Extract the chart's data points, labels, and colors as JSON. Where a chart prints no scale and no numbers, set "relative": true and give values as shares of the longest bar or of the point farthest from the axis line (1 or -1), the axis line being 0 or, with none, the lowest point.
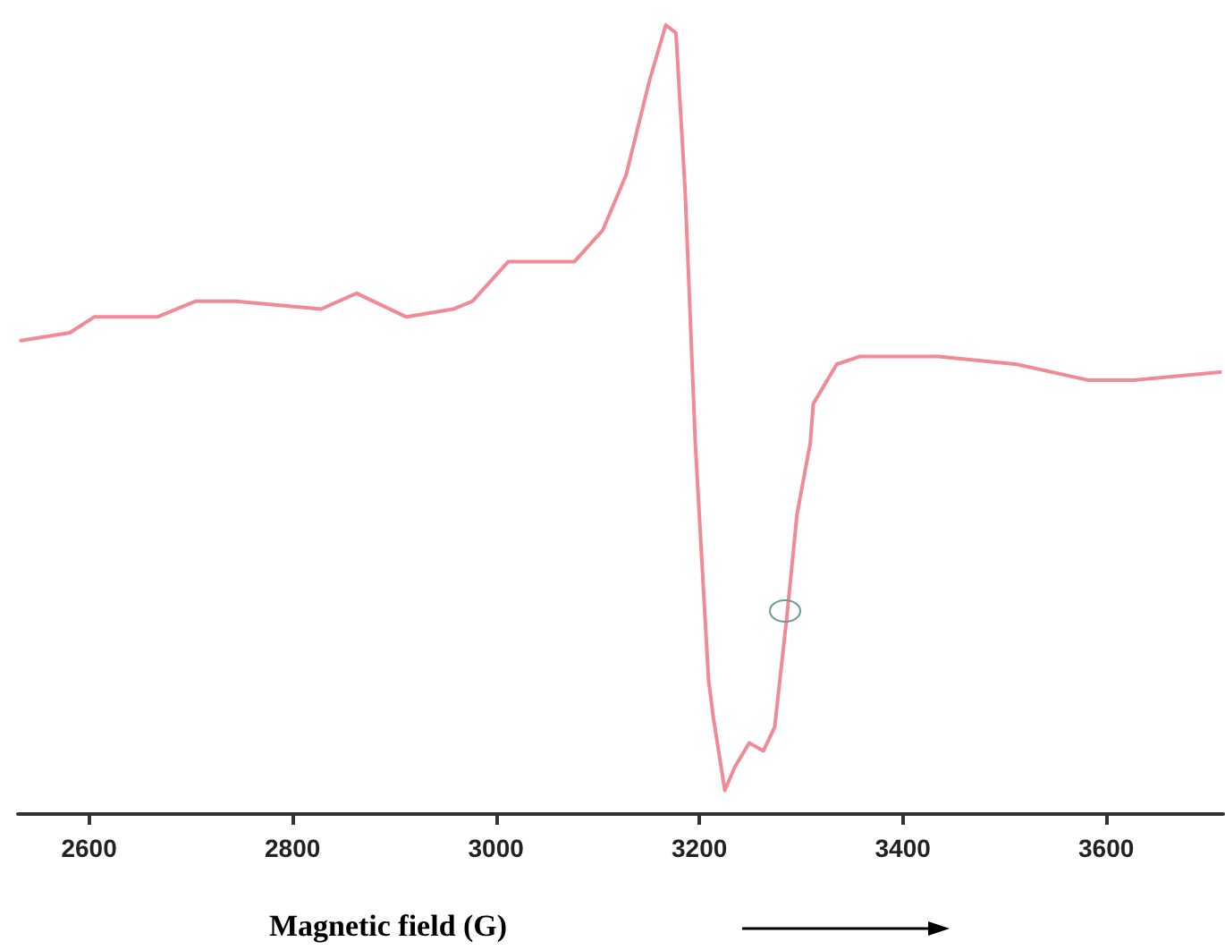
{
  "chart_data": {
    "type": "line",
    "relative": true,
    "xlabel": "Magnetic field (G)",
    "xlim": [
      2530,
      3715
    ],
    "xticks": [
      2600,
      2800,
      3000,
      3200,
      3400,
      3600
    ],
    "grid": false,
    "marker": "none",
    "line_style": "solid",
    "series": [
      {
        "color": "#f08a94",
        "x": [
          2533,
          2581,
          2605,
          2635,
          2667,
          2705,
          2744,
          2828,
          2863,
          2912,
          2958,
          2977,
          3012,
          3051,
          3077,
          3105,
          3128,
          3151,
          3167,
          3177,
          3186,
          3196,
          3209,
          3214,
          3225,
          3235,
          3249,
          3263,
          3274,
          3286,
          3296,
          3309,
          3312,
          3335,
          3358,
          3435,
          3512,
          3582,
          3628,
          3712
        ],
        "values": [
          0.6,
          0.61,
          0.63,
          0.63,
          0.63,
          0.65,
          0.65,
          0.64,
          0.66,
          0.63,
          0.64,
          0.65,
          0.7,
          0.7,
          0.7,
          0.74,
          0.81,
          0.93,
          1.0,
          0.99,
          0.79,
          0.47,
          0.17,
          0.12,
          0.03,
          0.06,
          0.09,
          0.08,
          0.11,
          0.25,
          0.38,
          0.47,
          0.52,
          0.57,
          0.58,
          0.58,
          0.57,
          0.55,
          0.55,
          0.56
        ]
      }
    ]
  }
}
